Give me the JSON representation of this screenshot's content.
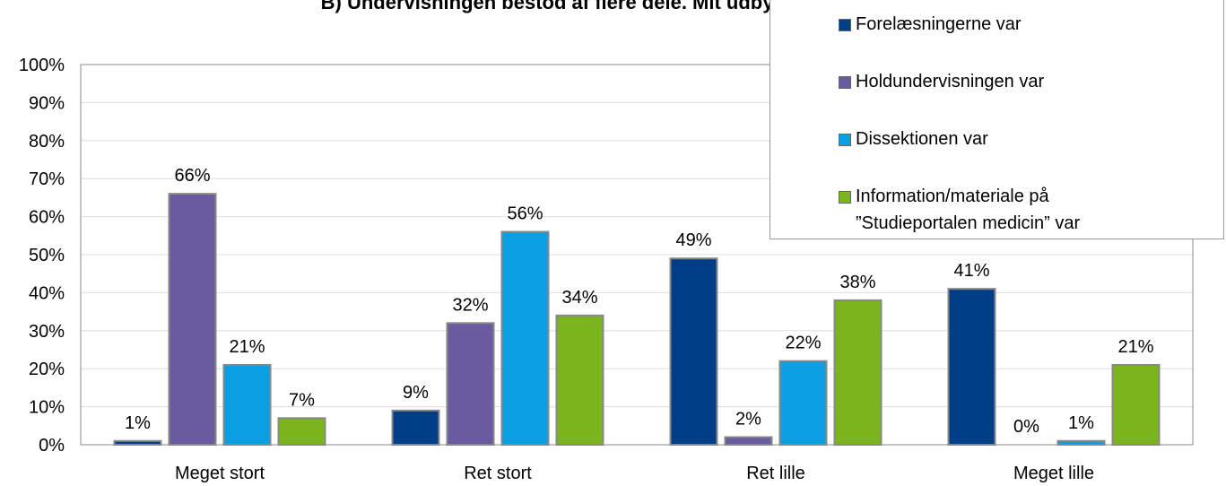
{
  "chart_data": {
    "type": "bar",
    "title": "B) Undervisningen bestod af flere dele. Mit udbytte af:",
    "categories": [
      "Meget stort",
      "Ret stort",
      "Ret lille",
      "Meget lille"
    ],
    "series": [
      {
        "name": "Forelæsningerne var",
        "color": "#003f87",
        "values": [
          1,
          9,
          49,
          41
        ]
      },
      {
        "name": "Holdundervisningen var",
        "color": "#6a5aa0",
        "values": [
          66,
          32,
          2,
          0
        ]
      },
      {
        "name": "Dissektionen var",
        "color": "#0a9fe0",
        "values": [
          21,
          56,
          22,
          1
        ]
      },
      {
        "name": "Information/materiale på ”Studieportalen medicin” var",
        "color": "#7ab51d",
        "values": [
          7,
          34,
          38,
          21
        ]
      }
    ],
    "value_suffix_labels": null,
    "ylim": [
      0,
      100
    ],
    "yticks": [
      {
        "value": 0,
        "label": "0%"
      },
      {
        "value": 10,
        "label": "10%"
      },
      {
        "value": 20,
        "label": "20%"
      },
      {
        "value": 30,
        "label": "30%"
      },
      {
        "value": 40,
        "label": "40%"
      },
      {
        "value": 50,
        "label": "50%"
      },
      {
        "value": 60,
        "label": "60%"
      },
      {
        "value": 70,
        "label": "70%"
      },
      {
        "value": 80,
        "label": "80%"
      },
      {
        "value": 90,
        "label": "90%"
      },
      {
        "value": 100,
        "label": "100%"
      }
    ],
    "value_labels": [
      [
        "1%",
        "9%",
        "49%",
        "41%"
      ],
      [
        "66%",
        "32%",
        "2%",
        "0%"
      ],
      [
        "21%",
        "56%",
        "22%",
        "1%"
      ],
      [
        "7%",
        "34%",
        "38%",
        "21%"
      ]
    ],
    "grid": true
  }
}
